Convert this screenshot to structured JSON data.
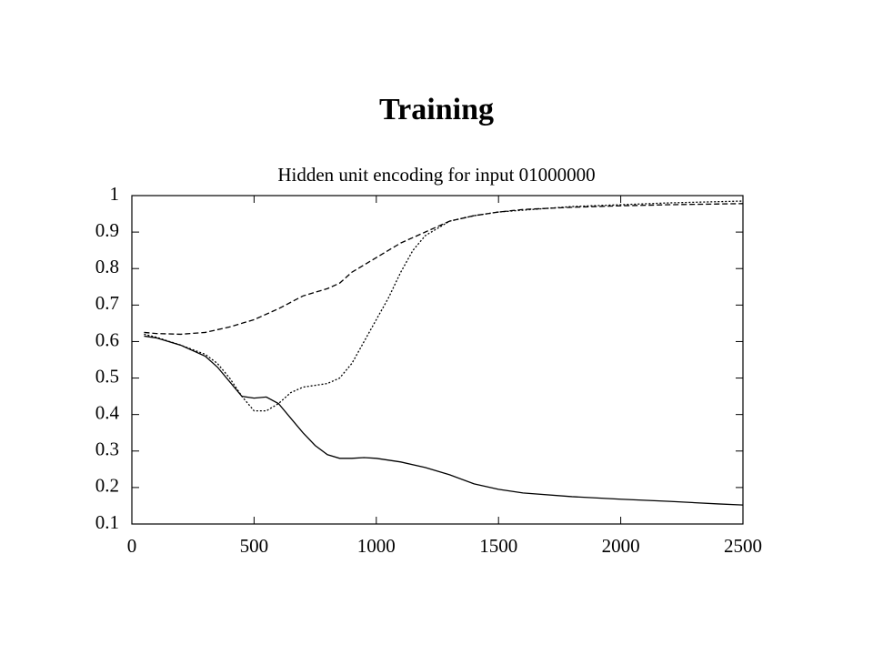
{
  "slide": {
    "title": "Training"
  },
  "chart_data": {
    "type": "line",
    "title": "Hidden unit encoding for input 01000000",
    "xlim": [
      0,
      2500
    ],
    "xticks": [
      0,
      500,
      1000,
      1500,
      2000,
      2500
    ],
    "ylim": [
      0.1,
      1
    ],
    "yticks": [
      0.1,
      0.2,
      0.3,
      0.4,
      0.5,
      0.6,
      0.7,
      0.8,
      0.9,
      1
    ],
    "grid": false,
    "series": [
      {
        "color": "#000000",
        "dash": "solid",
        "x": [
          50,
          100,
          200,
          300,
          350,
          400,
          450,
          500,
          550,
          600,
          650,
          700,
          750,
          800,
          850,
          900,
          950,
          1000,
          1100,
          1200,
          1300,
          1400,
          1500,
          1600,
          1800,
          2000,
          2200,
          2400,
          2500
        ],
        "values": [
          0.615,
          0.61,
          0.59,
          0.56,
          0.53,
          0.49,
          0.45,
          0.445,
          0.448,
          0.43,
          0.39,
          0.35,
          0.315,
          0.29,
          0.28,
          0.28,
          0.282,
          0.28,
          0.27,
          0.255,
          0.235,
          0.21,
          0.195,
          0.185,
          0.175,
          0.168,
          0.162,
          0.155,
          0.152
        ]
      },
      {
        "color": "#000000",
        "dash": "dotted",
        "x": [
          50,
          100,
          200,
          300,
          350,
          400,
          450,
          500,
          550,
          600,
          650,
          700,
          800,
          850,
          900,
          950,
          1000,
          1050,
          1100,
          1150,
          1200,
          1300,
          1400,
          1500,
          1600,
          1800,
          2000,
          2200,
          2500
        ],
        "values": [
          0.62,
          0.612,
          0.59,
          0.565,
          0.54,
          0.5,
          0.45,
          0.41,
          0.41,
          0.43,
          0.46,
          0.475,
          0.485,
          0.5,
          0.54,
          0.6,
          0.66,
          0.72,
          0.79,
          0.85,
          0.89,
          0.93,
          0.945,
          0.955,
          0.96,
          0.97,
          0.975,
          0.98,
          0.985
        ]
      },
      {
        "color": "#000000",
        "dash": "dashed",
        "x": [
          50,
          100,
          200,
          300,
          400,
          500,
          600,
          700,
          800,
          850,
          900,
          1000,
          1100,
          1200,
          1300,
          1400,
          1500,
          1600,
          1800,
          2000,
          2200,
          2500
        ],
        "values": [
          0.625,
          0.622,
          0.62,
          0.625,
          0.64,
          0.66,
          0.69,
          0.725,
          0.745,
          0.76,
          0.79,
          0.83,
          0.87,
          0.9,
          0.93,
          0.945,
          0.955,
          0.962,
          0.968,
          0.972,
          0.975,
          0.978
        ]
      }
    ]
  }
}
